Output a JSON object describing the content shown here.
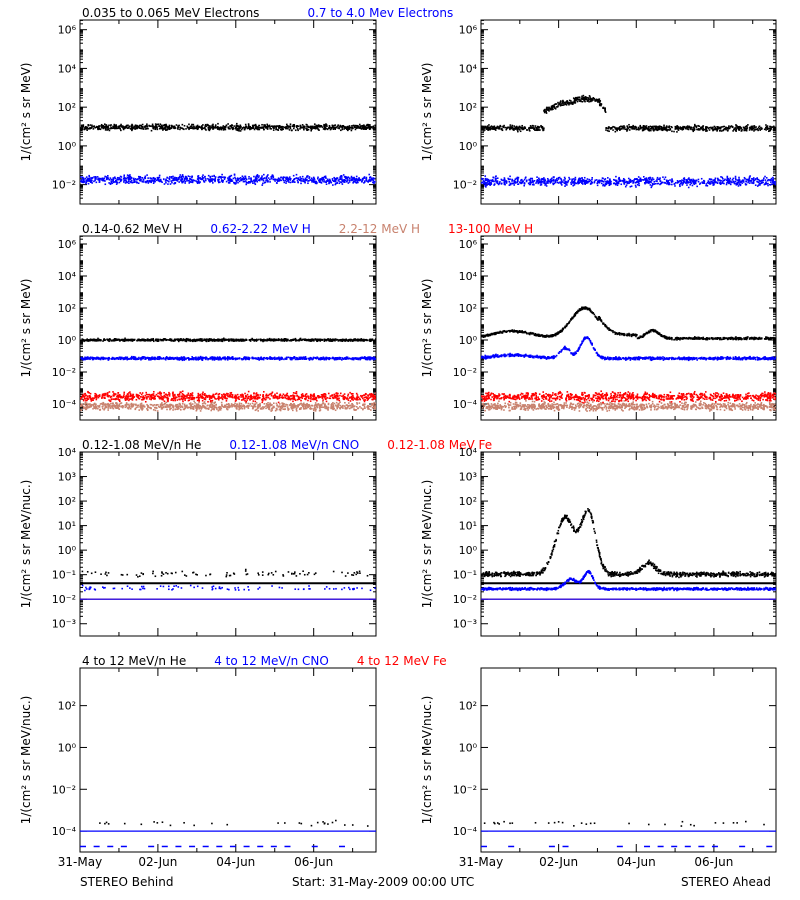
{
  "colors": {
    "black": "#000000",
    "blue": "#0000ff",
    "tan": "#c8826e",
    "red": "#ff0000"
  },
  "rows": [
    {
      "header": [
        {
          "text": "0.035 to 0.065 MeV Electrons",
          "color": "#000000"
        },
        {
          "text": "0.7 to 4.0 Mev Electrons",
          "color": "#0000ff"
        }
      ],
      "ylabel": "1/(cm² s sr MeV)",
      "yscale": "log",
      "ylim": [
        -3,
        6.5
      ],
      "ticks": [
        {
          "exp": -2,
          "label": "10⁻²"
        },
        {
          "exp": 0,
          "label": "10⁰"
        },
        {
          "exp": 2,
          "label": "10²"
        },
        {
          "exp": 4,
          "label": "10⁴"
        },
        {
          "exp": 6,
          "label": "10⁶"
        }
      ],
      "minor_per_decade": true
    },
    {
      "header": [
        {
          "text": "0.14-0.62 MeV H",
          "color": "#000000"
        },
        {
          "text": "0.62-2.22 MeV H",
          "color": "#0000ff"
        },
        {
          "text": "2.2-12 MeV H",
          "color": "#c8826e"
        },
        {
          "text": "13-100 MeV H",
          "color": "#ff0000"
        }
      ],
      "ylabel": "1/(cm² s sr MeV)",
      "yscale": "log",
      "ylim": [
        -5,
        6.5
      ],
      "ticks": [
        {
          "exp": -4,
          "label": "10⁻⁴"
        },
        {
          "exp": -2,
          "label": "10⁻²"
        },
        {
          "exp": 0,
          "label": "10⁰"
        },
        {
          "exp": 2,
          "label": "10²"
        },
        {
          "exp": 4,
          "label": "10⁴"
        },
        {
          "exp": 6,
          "label": "10⁶"
        }
      ],
      "minor_per_decade": true
    },
    {
      "header": [
        {
          "text": "0.12-1.08 MeV/n He",
          "color": "#000000"
        },
        {
          "text": "0.12-1.08 MeV/n CNO",
          "color": "#0000ff"
        },
        {
          "text": "0.12-1.08 MeV Fe",
          "color": "#ff0000"
        }
      ],
      "ylabel": "1/(cm² s sr MeV/nuc.)",
      "yscale": "log",
      "ylim": [
        -3.5,
        4
      ],
      "ticks": [
        {
          "exp": -3,
          "label": "10⁻³"
        },
        {
          "exp": -2,
          "label": "10⁻²"
        },
        {
          "exp": -1,
          "label": "10⁻¹"
        },
        {
          "exp": 0,
          "label": "10⁰"
        },
        {
          "exp": 1,
          "label": "10¹"
        },
        {
          "exp": 2,
          "label": "10²"
        },
        {
          "exp": 3,
          "label": "10³"
        },
        {
          "exp": 4,
          "label": "10⁴"
        }
      ],
      "minor_per_decade": true
    },
    {
      "header": [
        {
          "text": "4 to 12 MeV/n He",
          "color": "#000000"
        },
        {
          "text": "4 to 12 MeV/n CNO",
          "color": "#0000ff"
        },
        {
          "text": "4 to 12 MeV Fe",
          "color": "#ff0000"
        }
      ],
      "ylabel": "1/(cm² s sr MeV/nuc.)",
      "yscale": "log",
      "ylim": [
        -5,
        3.8
      ],
      "ticks": [
        {
          "exp": -4,
          "label": "10⁻⁴"
        },
        {
          "exp": -2,
          "label": "10⁻²"
        },
        {
          "exp": 0,
          "label": "10⁰"
        },
        {
          "exp": 2,
          "label": "10²"
        }
      ],
      "minor_per_decade": false
    }
  ],
  "chart_data": {
    "type": "scatter",
    "yscale": "log",
    "x_ticks": [
      "31-May",
      "02-Jun",
      "04-Jun",
      "06-Jun"
    ],
    "xlim_days": [
      0,
      7.6
    ],
    "x_tick_days": [
      0,
      2,
      4,
      6
    ],
    "panels": [
      {
        "row": 0,
        "side": "Behind",
        "series": [
          {
            "color": "#000000",
            "level": 1.0,
            "noise": 0.12,
            "profile": "flat"
          },
          {
            "color": "#0000ff",
            "level": -1.7,
            "noise": 0.18,
            "profile": "flat"
          }
        ]
      },
      {
        "row": 0,
        "side": "Ahead",
        "series": [
          {
            "color": "#000000",
            "level": 0.95,
            "noise": 0.12,
            "profile": "event_e"
          },
          {
            "color": "#0000ff",
            "level": -1.8,
            "noise": 0.18,
            "profile": "flat"
          }
        ]
      },
      {
        "row": 1,
        "side": "Behind",
        "series": [
          {
            "color": "#000000",
            "level": 0.05,
            "noise": 0.06,
            "profile": "flat"
          },
          {
            "color": "#0000ff",
            "level": -1.1,
            "noise": 0.07,
            "profile": "flat"
          },
          {
            "color": "#c8826e",
            "level": -4.1,
            "noise": 0.2,
            "profile": "flat"
          },
          {
            "color": "#ff0000",
            "level": -3.5,
            "noise": 0.22,
            "profile": "flat"
          }
        ]
      },
      {
        "row": 1,
        "side": "Ahead",
        "series": [
          {
            "color": "#000000",
            "level": 0.15,
            "noise": 0.06,
            "profile": "event_h"
          },
          {
            "color": "#0000ff",
            "level": -1.1,
            "noise": 0.07,
            "profile": "event_h2"
          },
          {
            "color": "#c8826e",
            "level": -4.1,
            "noise": 0.2,
            "profile": "flat"
          },
          {
            "color": "#ff0000",
            "level": -3.5,
            "noise": 0.22,
            "profile": "flat"
          }
        ]
      },
      {
        "row": 2,
        "side": "Behind",
        "series": [
          {
            "color": "#000000",
            "level": -1.35,
            "noise": 0.02,
            "profile": "line"
          },
          {
            "color": "#000000",
            "level": -0.95,
            "noise": 0.08,
            "profile": "sparse"
          },
          {
            "color": "#0000ff",
            "level": -1.55,
            "noise": 0.04,
            "profile": "sparse"
          },
          {
            "color": "#ff0000",
            "level": -2.0,
            "noise": 0.01,
            "profile": "line"
          },
          {
            "color": "#0000ff",
            "level": -2.0,
            "noise": 0.01,
            "profile": "line"
          }
        ]
      },
      {
        "row": 2,
        "side": "Ahead",
        "series": [
          {
            "color": "#000000",
            "level": -1.35,
            "noise": 0.02,
            "profile": "line"
          },
          {
            "color": "#000000",
            "level": -0.95,
            "noise": 0.08,
            "profile": "event_he"
          },
          {
            "color": "#0000ff",
            "level": -1.55,
            "noise": 0.04,
            "profile": "event_cno"
          },
          {
            "color": "#ff0000",
            "level": -2.0,
            "noise": 0.01,
            "profile": "line"
          },
          {
            "color": "#0000ff",
            "level": -2.0,
            "noise": 0.01,
            "profile": "line"
          }
        ]
      },
      {
        "row": 3,
        "side": "Behind",
        "series": [
          {
            "color": "#0000ff",
            "level": -4.0,
            "noise": 0.0,
            "profile": "line"
          },
          {
            "color": "#000000",
            "level": -3.6,
            "noise": 0.1,
            "profile": "sparse2"
          },
          {
            "color": "#0000ff",
            "level": -4.7,
            "noise": 0.0,
            "profile": "dash"
          }
        ]
      },
      {
        "row": 3,
        "side": "Ahead",
        "series": [
          {
            "color": "#0000ff",
            "level": -4.0,
            "noise": 0.0,
            "profile": "line"
          },
          {
            "color": "#000000",
            "level": -3.6,
            "noise": 0.1,
            "profile": "sparse2"
          },
          {
            "color": "#0000ff",
            "level": -4.7,
            "noise": 0.0,
            "profile": "dash"
          }
        ]
      }
    ]
  },
  "footer": {
    "left": "STEREO Behind",
    "center": "Start: 31-May-2009 00:00 UTC",
    "right": "STEREO Ahead"
  }
}
